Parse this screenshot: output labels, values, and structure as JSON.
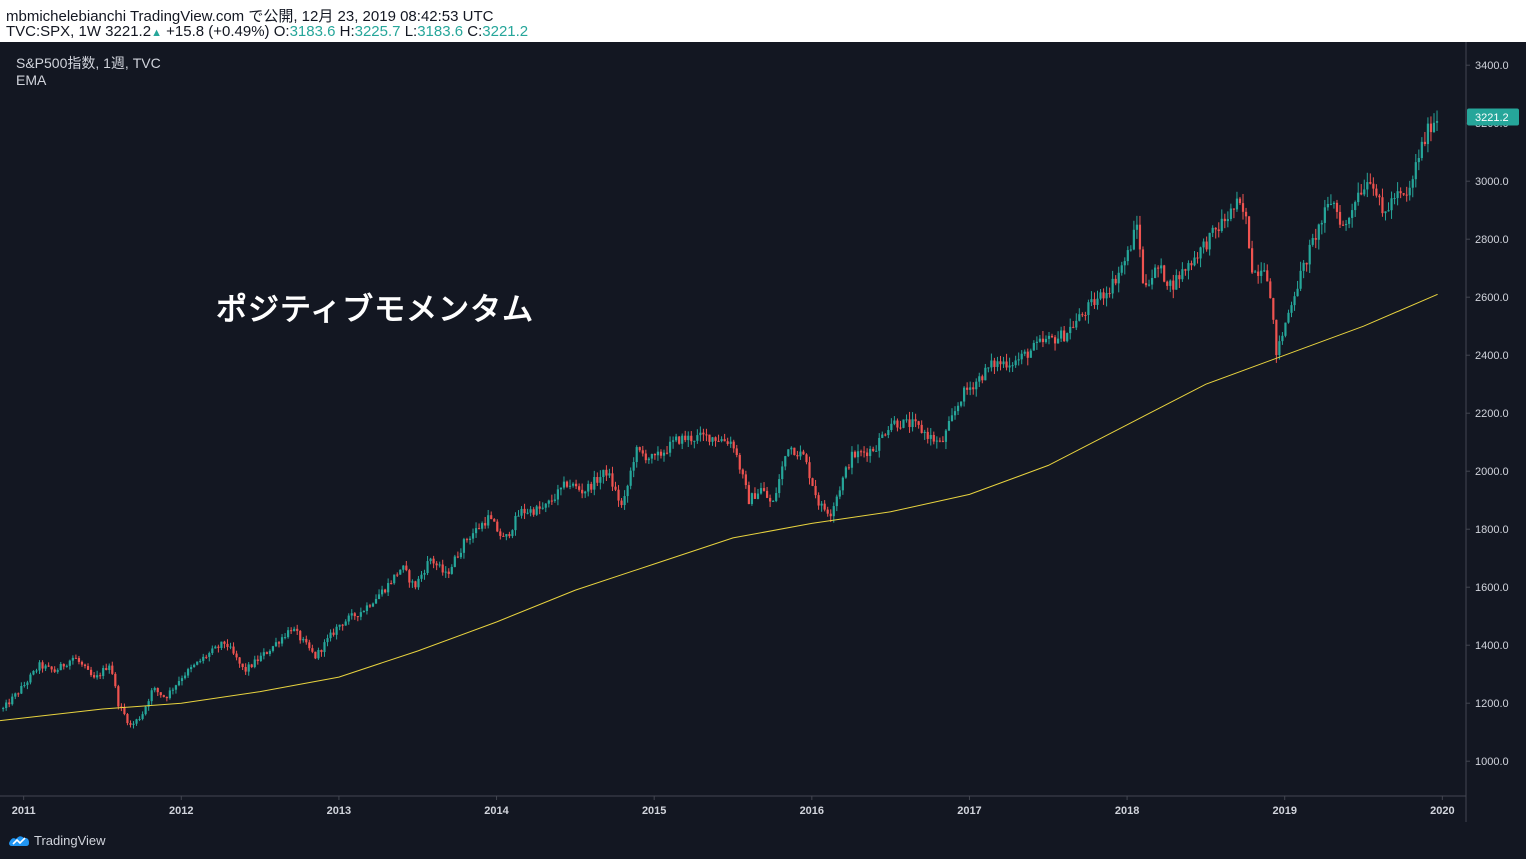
{
  "header": {
    "publish_line": "mbmichelebianchi TradingView.com で公開, 12月 23, 2019 08:42:53 UTC",
    "symbol_prefix": "TVC:SPX, 1W 3221.2",
    "arrow_icon": "▲",
    "change": "+15.8 (+0.49%)",
    "o_label": "O:",
    "o_value": "3183.6",
    "h_label": "H:",
    "h_value": "3225.7",
    "l_label": "L:",
    "l_value": "3183.6",
    "c_label": "C:",
    "c_value": "3221.2"
  },
  "legend": {
    "title": "S&P500指数, 1週, TVC",
    "indicator": "EMA"
  },
  "annotation": "ポジティブモメンタム",
  "footer": {
    "brand": "TradingView",
    "logo_icon": "tradingview-logo-icon"
  },
  "colors": {
    "background": "#131722",
    "up": "#26a69a",
    "down": "#ef5350",
    "ema": "#e8d33f",
    "grid": "#2a2e39",
    "price_tag": "#26a69a"
  },
  "chart_data": {
    "type": "candlestick",
    "title": "S&P500指数, 1週, TVC",
    "interval": "1W",
    "ylim": [
      880,
      3480
    ],
    "xlim": [
      2010.85,
      2020.15
    ],
    "y_ticks": [
      "1000.0",
      "1200.0",
      "1400.0",
      "1600.0",
      "1800.0",
      "2000.0",
      "2200.0",
      "2400.0",
      "2600.0",
      "2800.0",
      "3000.0",
      "3200.0",
      "3400.0"
    ],
    "x_ticks": [
      "2011",
      "2012",
      "2013",
      "2014",
      "2015",
      "2016",
      "2017",
      "2018",
      "2019",
      "2020"
    ],
    "last_price": "3221.2",
    "grid": false,
    "series": [
      {
        "name": "S&P500指数",
        "kind": "price",
        "points": [
          [
            2010.87,
            1180
          ],
          [
            2011.0,
            1260
          ],
          [
            2011.1,
            1330
          ],
          [
            2011.2,
            1310
          ],
          [
            2011.32,
            1360
          ],
          [
            2011.45,
            1280
          ],
          [
            2011.55,
            1340
          ],
          [
            2011.6,
            1200
          ],
          [
            2011.68,
            1120
          ],
          [
            2011.75,
            1160
          ],
          [
            2011.82,
            1250
          ],
          [
            2011.9,
            1220
          ],
          [
            2012.0,
            1290
          ],
          [
            2012.15,
            1360
          ],
          [
            2012.28,
            1410
          ],
          [
            2012.4,
            1310
          ],
          [
            2012.55,
            1380
          ],
          [
            2012.7,
            1460
          ],
          [
            2012.85,
            1360
          ],
          [
            2013.0,
            1470
          ],
          [
            2013.15,
            1520
          ],
          [
            2013.3,
            1600
          ],
          [
            2013.4,
            1670
          ],
          [
            2013.48,
            1600
          ],
          [
            2013.58,
            1700
          ],
          [
            2013.68,
            1640
          ],
          [
            2013.8,
            1760
          ],
          [
            2013.95,
            1840
          ],
          [
            2014.05,
            1760
          ],
          [
            2014.15,
            1860
          ],
          [
            2014.3,
            1870
          ],
          [
            2014.45,
            1960
          ],
          [
            2014.55,
            1930
          ],
          [
            2014.7,
            2000
          ],
          [
            2014.8,
            1870
          ],
          [
            2014.88,
            2070
          ],
          [
            2015.0,
            2040
          ],
          [
            2015.15,
            2110
          ],
          [
            2015.35,
            2120
          ],
          [
            2015.5,
            2100
          ],
          [
            2015.6,
            1900
          ],
          [
            2015.68,
            1940
          ],
          [
            2015.75,
            1880
          ],
          [
            2015.85,
            2090
          ],
          [
            2015.95,
            2050
          ],
          [
            2016.05,
            1880
          ],
          [
            2016.12,
            1860
          ],
          [
            2016.25,
            2050
          ],
          [
            2016.4,
            2080
          ],
          [
            2016.5,
            2170
          ],
          [
            2016.65,
            2160
          ],
          [
            2016.82,
            2090
          ],
          [
            2016.95,
            2260
          ],
          [
            2017.15,
            2370
          ],
          [
            2017.3,
            2380
          ],
          [
            2017.45,
            2440
          ],
          [
            2017.6,
            2470
          ],
          [
            2017.75,
            2560
          ],
          [
            2017.9,
            2640
          ],
          [
            2018.0,
            2740
          ],
          [
            2018.07,
            2860
          ],
          [
            2018.1,
            2640
          ],
          [
            2018.2,
            2700
          ],
          [
            2018.28,
            2640
          ],
          [
            2018.4,
            2720
          ],
          [
            2018.55,
            2820
          ],
          [
            2018.7,
            2920
          ],
          [
            2018.75,
            2880
          ],
          [
            2018.8,
            2680
          ],
          [
            2018.88,
            2720
          ],
          [
            2018.95,
            2400
          ],
          [
            2019.05,
            2600
          ],
          [
            2019.2,
            2820
          ],
          [
            2019.3,
            2940
          ],
          [
            2019.38,
            2830
          ],
          [
            2019.45,
            2950
          ],
          [
            2019.55,
            3020
          ],
          [
            2019.62,
            2880
          ],
          [
            2019.7,
            2950
          ],
          [
            2019.78,
            2940
          ],
          [
            2019.85,
            3090
          ],
          [
            2019.93,
            3200
          ],
          [
            2019.97,
            3221.2
          ]
        ]
      },
      {
        "name": "EMA",
        "kind": "ema",
        "points": [
          [
            2010.85,
            1140
          ],
          [
            2011.5,
            1180
          ],
          [
            2012.0,
            1200
          ],
          [
            2012.5,
            1240
          ],
          [
            2013.0,
            1290
          ],
          [
            2013.5,
            1380
          ],
          [
            2014.0,
            1480
          ],
          [
            2014.5,
            1590
          ],
          [
            2015.0,
            1680
          ],
          [
            2015.5,
            1770
          ],
          [
            2016.0,
            1820
          ],
          [
            2016.5,
            1860
          ],
          [
            2017.0,
            1920
          ],
          [
            2017.5,
            2020
          ],
          [
            2018.0,
            2160
          ],
          [
            2018.5,
            2300
          ],
          [
            2019.0,
            2400
          ],
          [
            2019.5,
            2500
          ],
          [
            2019.97,
            2610
          ]
        ]
      }
    ]
  }
}
